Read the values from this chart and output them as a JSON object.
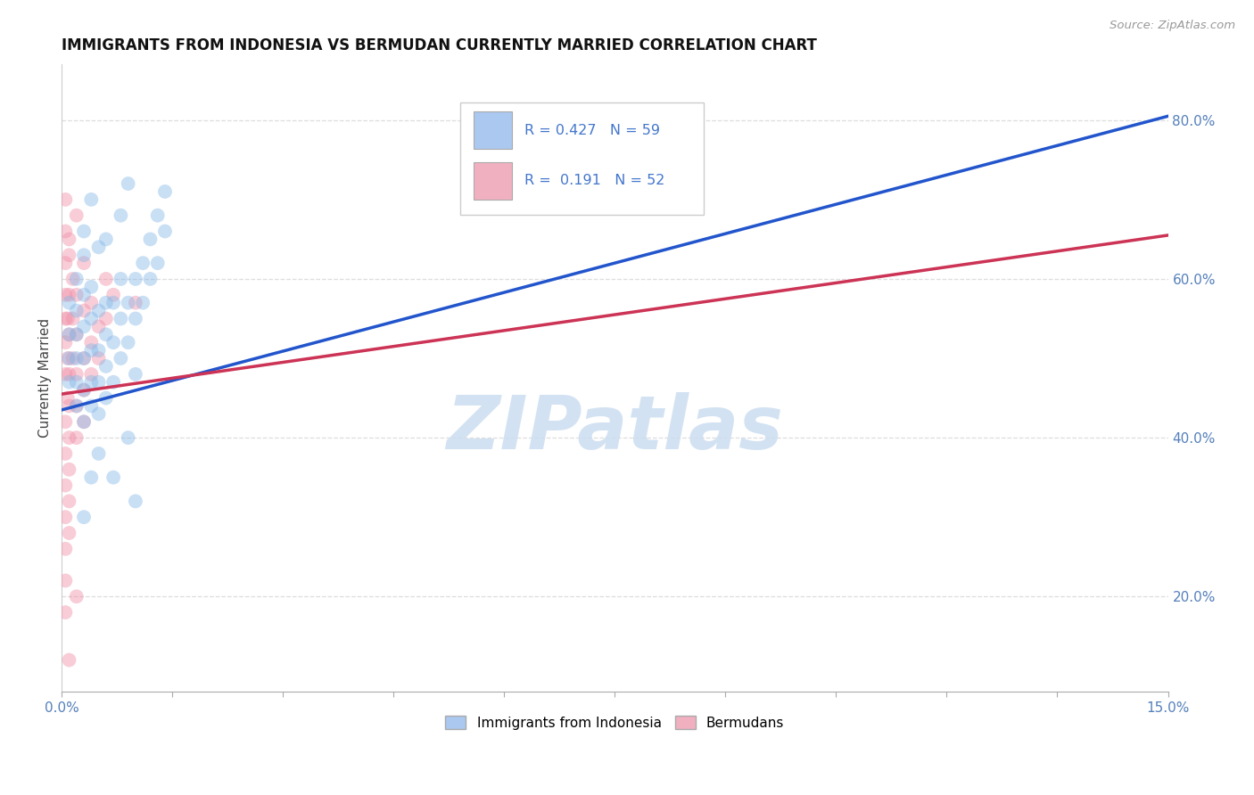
{
  "title": "IMMIGRANTS FROM INDONESIA VS BERMUDAN CURRENTLY MARRIED CORRELATION CHART",
  "source_text": "Source: ZipAtlas.com",
  "ylabel": "Currently Married",
  "xlim": [
    0.0,
    0.15
  ],
  "ylim": [
    0.08,
    0.87
  ],
  "yticks_right": [
    0.2,
    0.4,
    0.6,
    0.8
  ],
  "ytick_labels_right": [
    "20.0%",
    "40.0%",
    "60.0%",
    "80.0%"
  ],
  "xticks": [
    0.0,
    0.015,
    0.03,
    0.045,
    0.06,
    0.075,
    0.09,
    0.105,
    0.12,
    0.135,
    0.15
  ],
  "xtick_labels": [
    "0.0%",
    "",
    "",
    "",
    "",
    "",
    "",
    "",
    "",
    "",
    "15.0%"
  ],
  "legend_color1": "#aac8f0",
  "legend_color2": "#f0b0c0",
  "blue_color": "#88b8e8",
  "pink_color": "#f090a8",
  "trendline_blue": "#2255cc",
  "trendline_pink": "#cc3355",
  "watermark": "ZIPatlas",
  "watermark_color": "#ccddf0",
  "blue_trendline_x0": 0.0,
  "blue_trendline_y0": 0.435,
  "blue_trendline_x1": 0.15,
  "blue_trendline_y1": 0.805,
  "pink_trendline_x0": 0.0,
  "pink_trendline_y0": 0.455,
  "pink_trendline_x1": 0.15,
  "pink_trendline_y1": 0.655,
  "blue_scatter": [
    [
      0.001,
      0.47
    ],
    [
      0.001,
      0.5
    ],
    [
      0.001,
      0.53
    ],
    [
      0.001,
      0.57
    ],
    [
      0.002,
      0.44
    ],
    [
      0.002,
      0.47
    ],
    [
      0.002,
      0.5
    ],
    [
      0.002,
      0.53
    ],
    [
      0.002,
      0.56
    ],
    [
      0.002,
      0.6
    ],
    [
      0.003,
      0.42
    ],
    [
      0.003,
      0.46
    ],
    [
      0.003,
      0.5
    ],
    [
      0.003,
      0.54
    ],
    [
      0.003,
      0.58
    ],
    [
      0.003,
      0.63
    ],
    [
      0.003,
      0.66
    ],
    [
      0.004,
      0.44
    ],
    [
      0.004,
      0.47
    ],
    [
      0.004,
      0.51
    ],
    [
      0.004,
      0.55
    ],
    [
      0.004,
      0.59
    ],
    [
      0.005,
      0.43
    ],
    [
      0.005,
      0.47
    ],
    [
      0.005,
      0.51
    ],
    [
      0.005,
      0.56
    ],
    [
      0.006,
      0.45
    ],
    [
      0.006,
      0.49
    ],
    [
      0.006,
      0.53
    ],
    [
      0.006,
      0.57
    ],
    [
      0.007,
      0.47
    ],
    [
      0.007,
      0.52
    ],
    [
      0.007,
      0.57
    ],
    [
      0.008,
      0.5
    ],
    [
      0.008,
      0.55
    ],
    [
      0.008,
      0.6
    ],
    [
      0.009,
      0.52
    ],
    [
      0.009,
      0.57
    ],
    [
      0.01,
      0.55
    ],
    [
      0.01,
      0.6
    ],
    [
      0.01,
      0.48
    ],
    [
      0.011,
      0.57
    ],
    [
      0.011,
      0.62
    ],
    [
      0.012,
      0.6
    ],
    [
      0.012,
      0.65
    ],
    [
      0.013,
      0.62
    ],
    [
      0.013,
      0.68
    ],
    [
      0.014,
      0.66
    ],
    [
      0.014,
      0.71
    ],
    [
      0.004,
      0.7
    ],
    [
      0.006,
      0.65
    ],
    [
      0.008,
      0.68
    ],
    [
      0.009,
      0.72
    ],
    [
      0.01,
      0.32
    ],
    [
      0.003,
      0.3
    ],
    [
      0.004,
      0.35
    ],
    [
      0.005,
      0.38
    ],
    [
      0.005,
      0.64
    ],
    [
      0.009,
      0.4
    ],
    [
      0.007,
      0.35
    ]
  ],
  "pink_scatter": [
    [
      0.0005,
      0.48
    ],
    [
      0.0005,
      0.52
    ],
    [
      0.0005,
      0.55
    ],
    [
      0.0005,
      0.58
    ],
    [
      0.0005,
      0.62
    ],
    [
      0.0005,
      0.66
    ],
    [
      0.0005,
      0.42
    ],
    [
      0.0005,
      0.38
    ],
    [
      0.0005,
      0.34
    ],
    [
      0.0005,
      0.3
    ],
    [
      0.0005,
      0.26
    ],
    [
      0.0005,
      0.22
    ],
    [
      0.0005,
      0.18
    ],
    [
      0.0008,
      0.45
    ],
    [
      0.0008,
      0.5
    ],
    [
      0.0008,
      0.55
    ],
    [
      0.001,
      0.48
    ],
    [
      0.001,
      0.53
    ],
    [
      0.001,
      0.58
    ],
    [
      0.001,
      0.63
    ],
    [
      0.001,
      0.44
    ],
    [
      0.001,
      0.4
    ],
    [
      0.001,
      0.36
    ],
    [
      0.001,
      0.32
    ],
    [
      0.001,
      0.28
    ],
    [
      0.0015,
      0.5
    ],
    [
      0.0015,
      0.55
    ],
    [
      0.0015,
      0.6
    ],
    [
      0.002,
      0.48
    ],
    [
      0.002,
      0.53
    ],
    [
      0.002,
      0.58
    ],
    [
      0.002,
      0.44
    ],
    [
      0.002,
      0.4
    ],
    [
      0.003,
      0.5
    ],
    [
      0.003,
      0.56
    ],
    [
      0.003,
      0.62
    ],
    [
      0.003,
      0.46
    ],
    [
      0.003,
      0.42
    ],
    [
      0.004,
      0.52
    ],
    [
      0.004,
      0.57
    ],
    [
      0.004,
      0.48
    ],
    [
      0.005,
      0.54
    ],
    [
      0.005,
      0.5
    ],
    [
      0.006,
      0.55
    ],
    [
      0.006,
      0.6
    ],
    [
      0.007,
      0.58
    ],
    [
      0.01,
      0.57
    ],
    [
      0.001,
      0.65
    ],
    [
      0.002,
      0.68
    ],
    [
      0.0005,
      0.7
    ],
    [
      0.002,
      0.2
    ],
    [
      0.001,
      0.12
    ]
  ]
}
